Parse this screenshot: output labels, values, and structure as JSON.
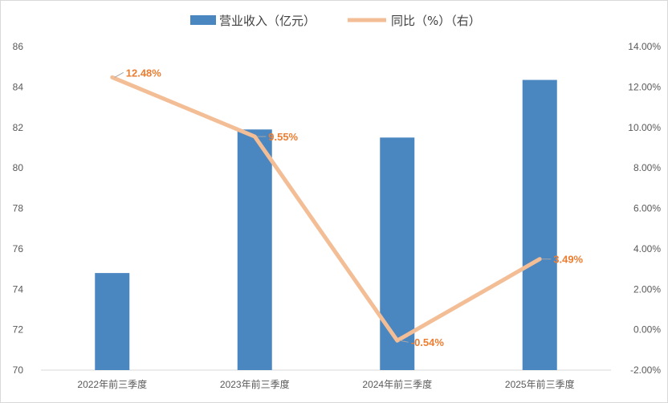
{
  "chart_data": {
    "type": "bar",
    "categories": [
      "2022年前三季度",
      "2023年前三季度",
      "2024年前三季度",
      "2025年前三季度"
    ],
    "series": [
      {
        "name": "营业收入（亿元）",
        "type": "bar",
        "axis": "left",
        "values": [
          74.8,
          81.9,
          81.5,
          84.35
        ],
        "color": "#4a86c0"
      },
      {
        "name": "同比（%）（右）",
        "type": "line",
        "axis": "right",
        "values": [
          12.48,
          9.55,
          -0.54,
          3.49
        ],
        "labels": [
          "12.48%",
          "9.55%",
          "-0.54%",
          "3.49%"
        ],
        "color": "#f3bd95",
        "label_color": "#ed7d31"
      }
    ],
    "y_left": {
      "ylim": [
        70,
        86
      ],
      "ticks": [
        "70",
        "72",
        "74",
        "76",
        "78",
        "80",
        "82",
        "84",
        "86"
      ]
    },
    "y_right": {
      "ylim": [
        -2,
        14
      ],
      "ticks": [
        "-2.00%",
        "0.00%",
        "2.00%",
        "4.00%",
        "6.00%",
        "8.00%",
        "10.00%",
        "12.00%",
        "14.00%"
      ]
    },
    "grid": false,
    "legend_position": "top"
  }
}
